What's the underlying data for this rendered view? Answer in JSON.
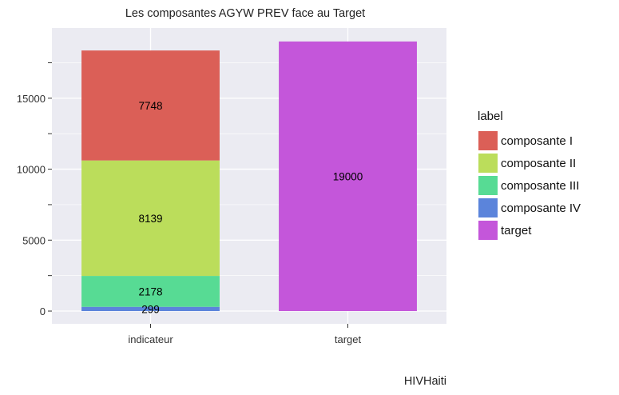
{
  "chart_data": {
    "type": "bar",
    "stacked": true,
    "title": "Les composantes AGYW PREV face au Target",
    "caption": "HIVHaiti",
    "xlabel": "",
    "ylabel": "",
    "categories": [
      "indicateur",
      "target"
    ],
    "ylim": [
      -900,
      19950
    ],
    "y_ticks": [
      0,
      5000,
      10000,
      15000
    ],
    "grid": true,
    "legend_title": "label",
    "legend_position": "right",
    "series": [
      {
        "name": "composante IV",
        "color": "#5B84DB",
        "values": [
          299,
          0
        ]
      },
      {
        "name": "composante III",
        "color": "#57DB94",
        "values": [
          2178,
          0
        ]
      },
      {
        "name": "composante II",
        "color": "#BBDD5B",
        "values": [
          8139,
          0
        ]
      },
      {
        "name": "composante I",
        "color": "#DB5F57",
        "values": [
          7748,
          0
        ]
      },
      {
        "name": "target",
        "color": "#C456DA",
        "values": [
          0,
          19000
        ]
      }
    ],
    "legend_order": [
      "composante I",
      "composante II",
      "composante III",
      "composante IV",
      "target"
    ],
    "panel_background": "#EBEBF2"
  }
}
